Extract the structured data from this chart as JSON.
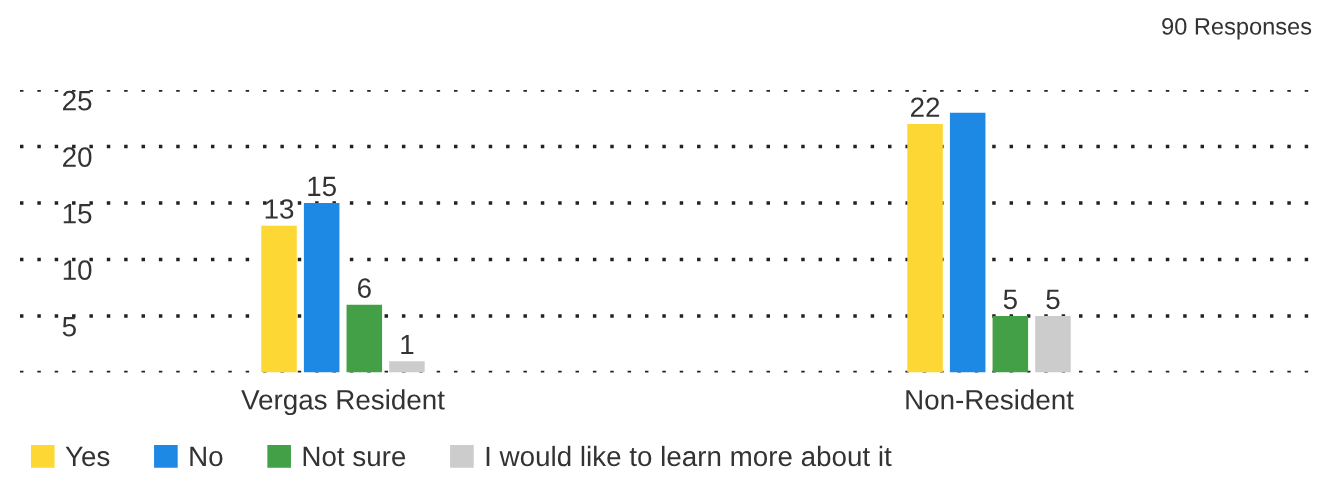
{
  "chart_data": {
    "type": "bar",
    "title": "90 Responses",
    "categories": [
      "Vergas Resident",
      "Non-Resident"
    ],
    "series": [
      {
        "name": "Yes",
        "color": "#fdd835",
        "values": [
          13,
          22
        ],
        "value_labels": [
          "13",
          "22"
        ]
      },
      {
        "name": "No",
        "color": "#1e88e5",
        "values": [
          15,
          23
        ],
        "value_labels": [
          "15",
          null
        ]
      },
      {
        "name": "Not sure",
        "color": "#43a047",
        "values": [
          6,
          5
        ],
        "value_labels": [
          "6",
          "5"
        ]
      },
      {
        "name": "I would like to learn more about it",
        "color": "#cccccc",
        "values": [
          1,
          5
        ],
        "value_labels": [
          "1",
          "5"
        ]
      }
    ],
    "ylim": [
      0,
      25
    ],
    "yticks": [
      {
        "value": 0,
        "label": null
      },
      5,
      10,
      15,
      20,
      25
    ],
    "grid": "y",
    "line_style": "dotted",
    "legend": "bottom left"
  }
}
